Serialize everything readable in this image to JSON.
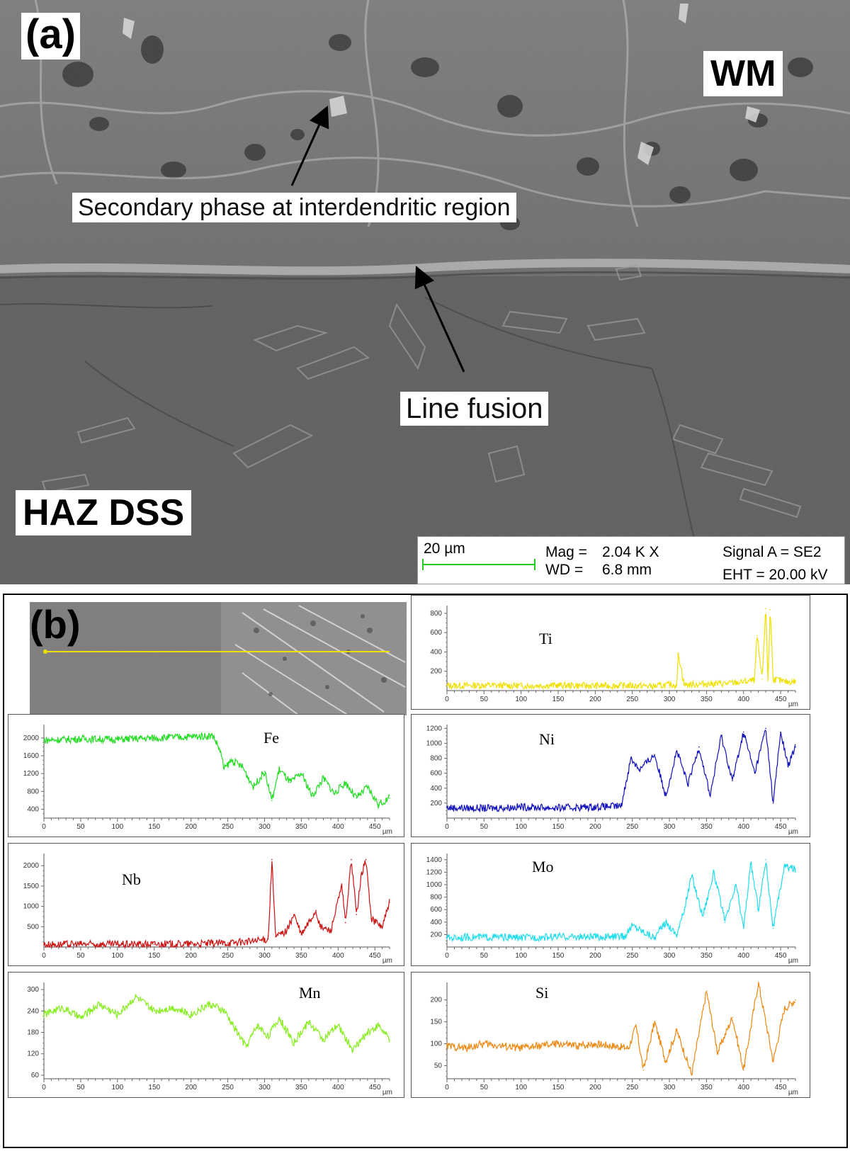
{
  "panel_a": {
    "letter": "(a)",
    "wm_label": "WM",
    "haz_label": "HAZ DSS",
    "annotations": {
      "secondary_phase": "Secondary phase at interdendritic region",
      "line_fusion": "Line fusion"
    },
    "sem_databar": {
      "scale_bar": "20 µm",
      "mag_label": "Mag =",
      "mag_value": "2.04 K X",
      "wd_label": "WD =",
      "wd_value": "6.8 mm",
      "signal": "Signal A = SE2",
      "eht": "EHT = 20.00 kV",
      "scale_bar_color": "#22cc22"
    }
  },
  "panel_b": {
    "letter": "(b)",
    "linescan_line_color": "#f0e000",
    "x_unit": "µm",
    "chart_data": [
      {
        "type": "line",
        "element": "Ti",
        "color": "#f0e000",
        "x_ticks": [
          0,
          50,
          100,
          150,
          200,
          250,
          300,
          350,
          400,
          450
        ],
        "y_ticks": [
          200,
          400,
          600,
          800
        ],
        "xlim": [
          0,
          470
        ],
        "ylim": [
          0,
          880
        ],
        "x": [
          0,
          50,
          100,
          150,
          200,
          250,
          280,
          300,
          310,
          312,
          320,
          350,
          380,
          400,
          410,
          415,
          418,
          425,
          430,
          433,
          436,
          440,
          455,
          470
        ],
        "y": [
          50,
          55,
          50,
          55,
          50,
          52,
          45,
          60,
          60,
          390,
          60,
          70,
          75,
          90,
          100,
          110,
          570,
          120,
          850,
          100,
          840,
          120,
          90,
          95
        ]
      },
      {
        "type": "line",
        "element": "Fe",
        "color": "#22dd22",
        "x_ticks": [
          0,
          50,
          100,
          150,
          200,
          250,
          300,
          350,
          400,
          450
        ],
        "y_ticks": [
          400,
          800,
          1200,
          1600,
          2000
        ],
        "xlim": [
          0,
          470
        ],
        "ylim": [
          200,
          2300
        ],
        "x": [
          0,
          50,
          100,
          150,
          200,
          230,
          240,
          245,
          255,
          270,
          285,
          300,
          310,
          320,
          335,
          350,
          365,
          380,
          395,
          410,
          425,
          440,
          455,
          470
        ],
        "y": [
          1950,
          1980,
          1970,
          2000,
          2030,
          2050,
          1700,
          1300,
          1500,
          1350,
          900,
          1250,
          600,
          1300,
          1000,
          1200,
          700,
          1100,
          750,
          1000,
          650,
          900,
          500,
          650
        ]
      },
      {
        "type": "line",
        "element": "Ni",
        "color": "#1010bb",
        "x_ticks": [
          0,
          50,
          100,
          150,
          200,
          250,
          300,
          350,
          400,
          450
        ],
        "y_ticks": [
          200,
          400,
          600,
          800,
          1000,
          1200
        ],
        "xlim": [
          0,
          470
        ],
        "ylim": [
          0,
          1250
        ],
        "x": [
          0,
          50,
          100,
          150,
          200,
          235,
          242,
          248,
          260,
          280,
          295,
          310,
          325,
          340,
          355,
          370,
          385,
          400,
          415,
          430,
          440,
          450,
          460,
          470
        ],
        "y": [
          140,
          130,
          150,
          135,
          150,
          160,
          500,
          800,
          650,
          850,
          300,
          900,
          450,
          950,
          300,
          1100,
          500,
          1150,
          600,
          1200,
          200,
          1150,
          700,
          950
        ]
      },
      {
        "type": "line",
        "element": "Nb",
        "color": "#cc1111",
        "x_ticks": [
          0,
          50,
          100,
          150,
          200,
          250,
          300,
          350,
          400,
          450
        ],
        "y_ticks": [
          500,
          1000,
          1500,
          2000
        ],
        "xlim": [
          0,
          470
        ],
        "ylim": [
          0,
          2300
        ],
        "x": [
          0,
          50,
          100,
          150,
          200,
          250,
          290,
          305,
          310,
          315,
          330,
          340,
          350,
          370,
          375,
          390,
          405,
          410,
          418,
          425,
          432,
          438,
          445,
          460,
          470
        ],
        "y": [
          60,
          70,
          65,
          70,
          75,
          100,
          150,
          200,
          2150,
          250,
          400,
          800,
          300,
          900,
          500,
          400,
          1500,
          600,
          2150,
          800,
          1800,
          2150,
          700,
          500,
          1100
        ]
      },
      {
        "type": "line",
        "element": "Mo",
        "color": "#22ddee",
        "x_ticks": [
          0,
          50,
          100,
          150,
          200,
          250,
          300,
          350,
          400,
          450
        ],
        "y_ticks": [
          200,
          400,
          600,
          800,
          1000,
          1200,
          1400
        ],
        "xlim": [
          0,
          470
        ],
        "ylim": [
          0,
          1500
        ],
        "x": [
          0,
          50,
          100,
          150,
          200,
          240,
          250,
          265,
          280,
          295,
          310,
          320,
          330,
          345,
          360,
          375,
          390,
          400,
          410,
          420,
          430,
          440,
          455,
          470
        ],
        "y": [
          150,
          160,
          150,
          165,
          160,
          170,
          350,
          250,
          150,
          400,
          200,
          600,
          1150,
          500,
          1200,
          400,
          1000,
          300,
          1350,
          600,
          1400,
          300,
          1300,
          1250
        ]
      },
      {
        "type": "line",
        "element": "Mn",
        "color": "#88ee22",
        "x_ticks": [
          0,
          50,
          100,
          150,
          200,
          250,
          300,
          350,
          400,
          450
        ],
        "y_ticks": [
          60,
          120,
          180,
          240,
          300
        ],
        "xlim": [
          0,
          470
        ],
        "ylim": [
          50,
          320
        ],
        "x": [
          0,
          25,
          50,
          75,
          100,
          125,
          150,
          175,
          200,
          225,
          245,
          260,
          275,
          290,
          305,
          320,
          340,
          360,
          380,
          400,
          420,
          440,
          455,
          470
        ],
        "y": [
          230,
          250,
          220,
          260,
          230,
          280,
          240,
          250,
          230,
          260,
          240,
          190,
          140,
          200,
          170,
          220,
          150,
          210,
          160,
          200,
          130,
          180,
          200,
          160
        ]
      },
      {
        "type": "line",
        "element": "Si",
        "color": "#ee8811",
        "x_ticks": [
          0,
          50,
          100,
          150,
          200,
          250,
          300,
          350,
          400,
          450
        ],
        "y_ticks": [
          50,
          100,
          150,
          200
        ],
        "xlim": [
          0,
          470
        ],
        "ylim": [
          20,
          240
        ],
        "x": [
          0,
          25,
          50,
          75,
          100,
          125,
          150,
          175,
          200,
          225,
          245,
          255,
          265,
          280,
          295,
          310,
          330,
          350,
          365,
          385,
          400,
          420,
          440,
          455,
          470
        ],
        "y": [
          95,
          90,
          100,
          95,
          90,
          95,
          100,
          95,
          100,
          95,
          90,
          140,
          40,
          150,
          60,
          130,
          30,
          220,
          80,
          160,
          40,
          240,
          60,
          180,
          200
        ]
      }
    ]
  }
}
